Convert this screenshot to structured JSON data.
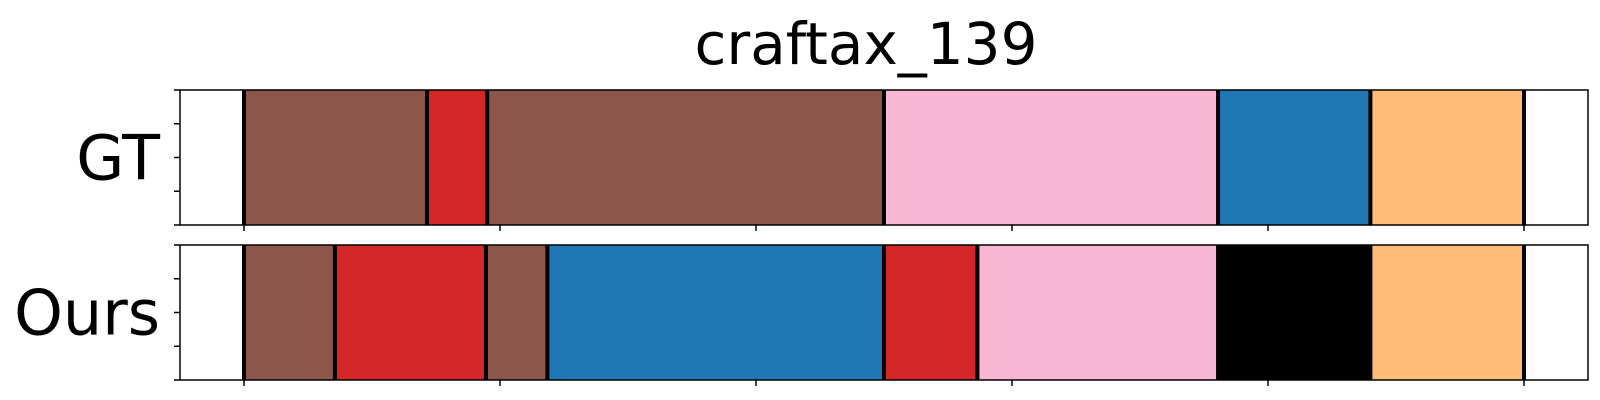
{
  "chart_data": {
    "type": "segmentation-timeline",
    "title": "craftax_139",
    "xlim": [
      0,
      1.1
    ],
    "xticks": [
      0.05,
      0.25,
      0.45,
      0.65,
      0.85,
      1.05
    ],
    "grid": false,
    "legend": "none",
    "rows": [
      {
        "label": "GT",
        "segments": [
          {
            "start": 0.05,
            "end": 0.193,
            "color": "#8c564b"
          },
          {
            "start": 0.193,
            "end": 0.24,
            "color": "#d62728"
          },
          {
            "start": 0.24,
            "end": 0.55,
            "color": "#8c564b"
          },
          {
            "start": 0.55,
            "end": 0.811,
            "color": "#f7b6d2"
          },
          {
            "start": 0.811,
            "end": 0.93,
            "color": "#1f77b4"
          },
          {
            "start": 0.93,
            "end": 1.05,
            "color": "#ffbb78"
          }
        ]
      },
      {
        "label": "Ours",
        "segments": [
          {
            "start": 0.05,
            "end": 0.121,
            "color": "#8c564b"
          },
          {
            "start": 0.121,
            "end": 0.239,
            "color": "#d62728"
          },
          {
            "start": 0.239,
            "end": 0.287,
            "color": "#8c564b"
          },
          {
            "start": 0.287,
            "end": 0.55,
            "color": "#1f77b4"
          },
          {
            "start": 0.55,
            "end": 0.623,
            "color": "#d62728"
          },
          {
            "start": 0.623,
            "end": 0.811,
            "color": "#f7b6d2"
          },
          {
            "start": 0.811,
            "end": 0.93,
            "color": "#000000"
          },
          {
            "start": 0.93,
            "end": 1.05,
            "color": "#ffbb78"
          }
        ]
      }
    ]
  }
}
